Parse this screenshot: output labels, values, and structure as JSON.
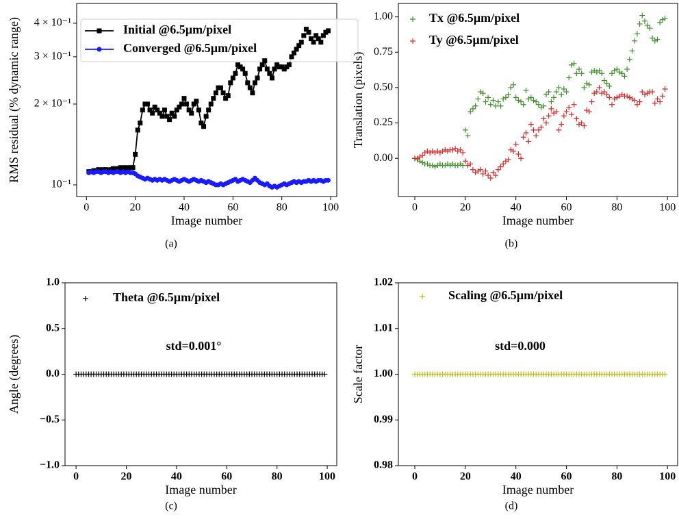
{
  "chart_data": [
    {
      "type": "line",
      "caption": "(a)",
      "xlabel": "Image number",
      "ylabel": "RMS residual (% dynamic range)",
      "yscale": "log",
      "xlim": [
        -4,
        102.5
      ],
      "ylim": [
        0.0905,
        0.474
      ],
      "xticks": [
        0,
        20,
        40,
        60,
        80,
        100
      ],
      "yticks": [
        {
          "value": 0.1,
          "label": "10⁻¹"
        },
        {
          "value": 0.2,
          "label": "2 × 10⁻¹"
        },
        {
          "value": 0.3,
          "label": "3 × 10⁻¹"
        },
        {
          "value": 0.4,
          "label": "4 × 10⁻¹"
        }
      ],
      "legend": "upper left",
      "x": [
        1,
        2,
        3,
        4,
        5,
        6,
        7,
        8,
        9,
        10,
        11,
        12,
        13,
        14,
        15,
        16,
        17,
        18,
        19,
        20,
        21,
        22,
        23,
        24,
        25,
        26,
        27,
        28,
        29,
        30,
        31,
        32,
        33,
        34,
        35,
        36,
        37,
        38,
        39,
        40,
        41,
        42,
        43,
        44,
        45,
        46,
        47,
        48,
        49,
        50,
        51,
        52,
        53,
        54,
        55,
        56,
        57,
        58,
        59,
        60,
        61,
        62,
        63,
        64,
        65,
        66,
        67,
        68,
        69,
        70,
        71,
        72,
        73,
        74,
        75,
        76,
        77,
        78,
        79,
        80,
        81,
        82,
        83,
        84,
        85,
        86,
        87,
        88,
        89,
        90,
        91,
        92,
        93,
        94,
        95,
        96,
        97,
        98,
        99
      ],
      "series": [
        {
          "name": "Initial @6.5µm/pixel",
          "color": "#000000",
          "marker": "s",
          "values": [
            0.112,
            0.112,
            0.113,
            0.113,
            0.114,
            0.113,
            0.114,
            0.114,
            0.113,
            0.114,
            0.115,
            0.114,
            0.115,
            0.116,
            0.115,
            0.116,
            0.115,
            0.116,
            0.116,
            0.13,
            0.16,
            0.17,
            0.19,
            0.2,
            0.2,
            0.19,
            0.185,
            0.195,
            0.19,
            0.185,
            0.18,
            0.19,
            0.18,
            0.175,
            0.185,
            0.18,
            0.19,
            0.195,
            0.2,
            0.21,
            0.2,
            0.19,
            0.185,
            0.2,
            0.205,
            0.19,
            0.17,
            0.165,
            0.18,
            0.19,
            0.2,
            0.21,
            0.22,
            0.23,
            0.23,
            0.22,
            0.21,
            0.215,
            0.24,
            0.25,
            0.26,
            0.28,
            0.275,
            0.27,
            0.26,
            0.24,
            0.23,
            0.22,
            0.24,
            0.25,
            0.27,
            0.28,
            0.29,
            0.27,
            0.26,
            0.25,
            0.27,
            0.28,
            0.275,
            0.275,
            0.27,
            0.275,
            0.28,
            0.3,
            0.31,
            0.32,
            0.33,
            0.34,
            0.36,
            0.38,
            0.37,
            0.35,
            0.34,
            0.36,
            0.35,
            0.34,
            0.36,
            0.37,
            0.375
          ]
        },
        {
          "name": "Converged @6.5µm/pixel",
          "color": "#1a1aff",
          "marker": "o",
          "values": [
            0.111,
            0.112,
            0.111,
            0.112,
            0.112,
            0.111,
            0.112,
            0.112,
            0.111,
            0.112,
            0.111,
            0.112,
            0.112,
            0.111,
            0.112,
            0.111,
            0.112,
            0.111,
            0.111,
            0.11,
            0.108,
            0.107,
            0.106,
            0.105,
            0.106,
            0.105,
            0.104,
            0.105,
            0.104,
            0.105,
            0.104,
            0.105,
            0.104,
            0.103,
            0.104,
            0.105,
            0.104,
            0.103,
            0.104,
            0.105,
            0.104,
            0.103,
            0.104,
            0.105,
            0.104,
            0.103,
            0.104,
            0.103,
            0.102,
            0.103,
            0.102,
            0.101,
            0.1,
            0.1,
            0.101,
            0.1,
            0.101,
            0.102,
            0.103,
            0.104,
            0.105,
            0.103,
            0.104,
            0.105,
            0.104,
            0.103,
            0.102,
            0.104,
            0.106,
            0.104,
            0.102,
            0.101,
            0.1,
            0.101,
            0.099,
            0.098,
            0.099,
            0.098,
            0.099,
            0.1,
            0.101,
            0.1,
            0.101,
            0.102,
            0.103,
            0.102,
            0.103,
            0.102,
            0.103,
            0.103,
            0.104,
            0.103,
            0.104,
            0.103,
            0.104,
            0.104,
            0.103,
            0.104,
            0.104
          ]
        }
      ]
    },
    {
      "type": "scatter",
      "caption": "(b)",
      "xlabel": "Image number",
      "ylabel": "Translation (pixels)",
      "xlim": [
        -6.5,
        104
      ],
      "ylim": [
        -0.27,
        1.095
      ],
      "xticks": [
        0,
        20,
        40,
        60,
        80,
        100
      ],
      "yticks": [
        {
          "value": 0,
          "label": "0.00"
        },
        0.25,
        {
          "value": 0.5,
          "label": "0.50"
        },
        0.75,
        {
          "value": 1,
          "label": "1.00"
        }
      ],
      "legend": "upper left",
      "x": [
        0,
        1,
        2,
        3,
        4,
        5,
        6,
        7,
        8,
        9,
        10,
        11,
        12,
        13,
        14,
        15,
        16,
        17,
        18,
        19,
        20,
        21,
        22,
        23,
        24,
        25,
        26,
        27,
        28,
        29,
        30,
        31,
        32,
        33,
        34,
        35,
        36,
        37,
        38,
        39,
        40,
        41,
        42,
        43,
        44,
        45,
        46,
        47,
        48,
        49,
        50,
        51,
        52,
        53,
        54,
        55,
        56,
        57,
        58,
        59,
        60,
        61,
        62,
        63,
        64,
        65,
        66,
        67,
        68,
        69,
        70,
        71,
        72,
        73,
        74,
        75,
        76,
        77,
        78,
        79,
        80,
        81,
        82,
        83,
        84,
        85,
        86,
        87,
        88,
        89,
        90,
        91,
        92,
        93,
        94,
        95,
        96,
        97,
        98,
        99
      ],
      "series": [
        {
          "name": "Tx @6.5µm/pixel",
          "color": "#3c8c28",
          "marker": "+",
          "values": [
            0,
            -0.01,
            -0.02,
            -0.03,
            -0.04,
            -0.04,
            -0.05,
            -0.05,
            -0.06,
            -0.05,
            -0.04,
            -0.05,
            -0.05,
            -0.04,
            -0.05,
            -0.04,
            -0.05,
            -0.05,
            -0.04,
            -0.05,
            0.2,
            0.16,
            0.33,
            0.35,
            0.37,
            0.42,
            0.47,
            0.46,
            0.4,
            0.43,
            0.38,
            0.41,
            0.37,
            0.4,
            0.37,
            0.42,
            0.43,
            0.45,
            0.5,
            0.52,
            0.43,
            0.41,
            0.4,
            0.38,
            0.48,
            0.42,
            0.43,
            0.41,
            0.4,
            0.38,
            0.36,
            0.37,
            0.45,
            0.47,
            0.4,
            0.43,
            0.47,
            0.5,
            0.45,
            0.49,
            0.47,
            0.57,
            0.66,
            0.67,
            0.6,
            0.63,
            0.6,
            0.5,
            0.53,
            0.52,
            0.61,
            0.62,
            0.61,
            0.62,
            0.6,
            0.55,
            0.53,
            0.51,
            0.6,
            0.62,
            0.63,
            0.61,
            0.6,
            0.58,
            0.63,
            0.7,
            0.76,
            0.83,
            0.88,
            0.95,
            1.01,
            0.97,
            0.94,
            0.92,
            0.85,
            0.83,
            0.84,
            0.96,
            0.98,
            0.99
          ]
        },
        {
          "name": "Ty @6.5µm/pixel",
          "color": "#d62728",
          "marker": "+",
          "values": [
            0,
            0,
            0.01,
            0.02,
            0.04,
            0.05,
            0.04,
            0.05,
            0.04,
            0.05,
            0.04,
            0.05,
            0.06,
            0.05,
            0.06,
            0.06,
            0.07,
            0.05,
            0.06,
            0.04,
            -0.02,
            -0.05,
            -0.04,
            -0.08,
            -0.1,
            -0.09,
            -0.08,
            -0.11,
            -0.09,
            -0.12,
            -0.14,
            -0.1,
            -0.12,
            -0.08,
            -0.06,
            -0.04,
            -0.02,
            -0.01,
            0.06,
            0.05,
            0.1,
            0.03,
            0,
            0.15,
            0.18,
            0.12,
            0.24,
            0.2,
            0.16,
            0.2,
            0.22,
            0.28,
            0.25,
            0.3,
            0.35,
            0.32,
            0.33,
            0.2,
            0.24,
            0.3,
            0.33,
            0.36,
            0.31,
            0.38,
            0.28,
            0.24,
            0.25,
            0.23,
            0.34,
            0.33,
            0.4,
            0.46,
            0.47,
            0.5,
            0.46,
            0.47,
            0.45,
            0.43,
            0.38,
            0.42,
            0.43,
            0.44,
            0.45,
            0.44,
            0.44,
            0.43,
            0.42,
            0.41,
            0.38,
            0.4,
            0.47,
            0.45,
            0.46,
            0.47,
            0.47,
            0.39,
            0.42,
            0.4,
            0.44,
            0.49
          ]
        }
      ]
    },
    {
      "type": "scatter",
      "caption": "(c)",
      "xlabel": "Image number",
      "ylabel": "Angle (degrees)",
      "annotation": "std=0.001°",
      "xlim": [
        -4.4,
        103.8
      ],
      "ylim": [
        -1,
        1
      ],
      "xticks": [
        0,
        20,
        40,
        60,
        80,
        100
      ],
      "yticks": [
        {
          "value": -1,
          "label": "−1.0"
        },
        {
          "value": -0.5,
          "label": "−0.5"
        },
        {
          "value": 0,
          "label": "0.0"
        },
        0.5,
        {
          "value": 1,
          "label": "1.0"
        }
      ],
      "legend": "upper left",
      "x": [
        0,
        1,
        2,
        3,
        4,
        5,
        6,
        7,
        8,
        9,
        10,
        11,
        12,
        13,
        14,
        15,
        16,
        17,
        18,
        19,
        20,
        21,
        22,
        23,
        24,
        25,
        26,
        27,
        28,
        29,
        30,
        31,
        32,
        33,
        34,
        35,
        36,
        37,
        38,
        39,
        40,
        41,
        42,
        43,
        44,
        45,
        46,
        47,
        48,
        49,
        50,
        51,
        52,
        53,
        54,
        55,
        56,
        57,
        58,
        59,
        60,
        61,
        62,
        63,
        64,
        65,
        66,
        67,
        68,
        69,
        70,
        71,
        72,
        73,
        74,
        75,
        76,
        77,
        78,
        79,
        80,
        81,
        82,
        83,
        84,
        85,
        86,
        87,
        88,
        89,
        90,
        91,
        92,
        93,
        94,
        95,
        96,
        97,
        98,
        99
      ],
      "series": [
        {
          "name": "Theta @6.5µm/pixel",
          "color": "#000000",
          "marker": "+",
          "values": [
            0,
            0,
            0,
            0,
            0,
            0,
            0,
            0,
            0,
            0,
            0,
            0,
            0,
            0,
            0,
            0,
            0,
            0,
            0,
            0,
            0,
            0,
            0,
            0,
            0,
            0,
            0,
            0,
            0,
            0,
            0,
            0,
            0,
            0,
            0,
            0,
            0,
            0,
            0,
            0,
            0,
            0,
            0,
            0,
            0,
            0,
            0,
            0,
            0,
            0,
            0,
            0,
            0,
            0,
            0,
            0,
            0,
            0,
            0,
            0,
            0,
            0,
            0,
            0,
            0,
            0,
            0,
            0,
            0,
            0,
            0,
            0,
            0,
            0,
            0,
            0,
            0,
            0,
            0,
            0,
            0,
            0,
            0,
            0,
            0,
            0,
            0,
            0,
            0,
            0,
            0,
            0,
            0,
            0,
            0,
            0,
            0,
            0,
            0,
            0
          ]
        }
      ]
    },
    {
      "type": "scatter",
      "caption": "(d)",
      "xlabel": "Image number",
      "ylabel": "Scale factor",
      "annotation": "std=0.000",
      "xlim": [
        -6.5,
        104
      ],
      "ylim": [
        0.98,
        1.02
      ],
      "xticks": [
        0,
        20,
        40,
        60,
        80,
        100
      ],
      "yticks": [
        0.98,
        0.99,
        {
          "value": 1,
          "label": "1.00"
        },
        1.01,
        1.02
      ],
      "legend": "upper left",
      "x": [
        0,
        1,
        2,
        3,
        4,
        5,
        6,
        7,
        8,
        9,
        10,
        11,
        12,
        13,
        14,
        15,
        16,
        17,
        18,
        19,
        20,
        21,
        22,
        23,
        24,
        25,
        26,
        27,
        28,
        29,
        30,
        31,
        32,
        33,
        34,
        35,
        36,
        37,
        38,
        39,
        40,
        41,
        42,
        43,
        44,
        45,
        46,
        47,
        48,
        49,
        50,
        51,
        52,
        53,
        54,
        55,
        56,
        57,
        58,
        59,
        60,
        61,
        62,
        63,
        64,
        65,
        66,
        67,
        68,
        69,
        70,
        71,
        72,
        73,
        74,
        75,
        76,
        77,
        78,
        79,
        80,
        81,
        82,
        83,
        84,
        85,
        86,
        87,
        88,
        89,
        90,
        91,
        92,
        93,
        94,
        95,
        96,
        97,
        98,
        99
      ],
      "series": [
        {
          "name": "Scaling @6.5µm/pixel",
          "color": "#bcbd22",
          "marker": "+",
          "values": [
            1,
            1,
            1,
            1,
            1,
            1,
            1,
            1,
            1,
            1,
            1,
            1,
            1,
            1,
            1,
            1,
            1,
            1,
            1,
            1,
            1,
            1,
            1,
            1,
            1,
            1,
            1,
            1,
            1,
            1,
            1,
            1,
            1,
            1,
            1,
            1,
            1,
            1,
            1,
            1,
            1,
            1,
            1,
            1,
            1,
            1,
            1,
            1,
            1,
            1,
            1,
            1,
            1,
            1,
            1,
            1,
            1,
            1,
            1,
            1,
            1,
            1,
            1,
            1,
            1,
            1,
            1,
            1,
            1,
            1,
            1,
            1,
            1,
            1,
            1,
            1,
            1,
            1,
            1,
            1,
            1,
            1,
            1,
            1,
            1,
            1,
            1,
            1,
            1,
            1,
            1,
            1,
            1,
            1,
            1,
            1,
            1,
            1,
            1,
            1
          ]
        }
      ]
    }
  ]
}
